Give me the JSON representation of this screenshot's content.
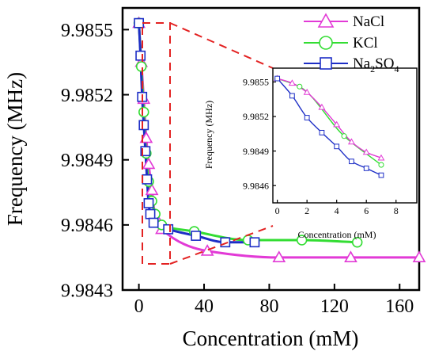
{
  "chart_data": [
    {
      "type": "line",
      "xlabel": "Concentration (mM)",
      "ylabel": "Frequency  (MHz)",
      "xlim": [
        -10,
        172
      ],
      "ylim": [
        9.9843,
        9.9856
      ],
      "x_ticks": [
        0,
        40,
        80,
        120,
        160
      ],
      "x_tick_labels": [
        "0",
        "40",
        "80",
        "120",
        "160"
      ],
      "y_ticks": [
        9.9843,
        9.9846,
        9.9849,
        9.9852,
        9.9855
      ],
      "y_tick_labels": [
        "9.9843",
        "9.9846",
        "9.9849",
        "9.9852",
        "9.9855"
      ],
      "legend_position": "top-right",
      "series": [
        {
          "name": "NaCl",
          "color": "#e23ad6",
          "marker": "triangle",
          "markers": [
            {
              "x": 0,
              "y": 9.98553
            },
            {
              "x": 1.5,
              "y": 9.98535
            },
            {
              "x": 3,
              "y": 9.98518
            },
            {
              "x": 4.5,
              "y": 9.985
            },
            {
              "x": 6,
              "y": 9.98488
            },
            {
              "x": 8,
              "y": 9.98476
            },
            {
              "x": 10,
              "y": 9.98464
            },
            {
              "x": 14,
              "y": 9.98458
            },
            {
              "x": 42,
              "y": 9.98448
            },
            {
              "x": 86,
              "y": 9.98445
            },
            {
              "x": 130,
              "y": 9.98445
            },
            {
              "x": 172,
              "y": 9.98445
            }
          ]
        },
        {
          "name": "KCl",
          "color": "#33dd33",
          "marker": "circle",
          "markers": [
            {
              "x": 0,
              "y": 9.98553
            },
            {
              "x": 1.5,
              "y": 9.98533
            },
            {
              "x": 3,
              "y": 9.98512
            },
            {
              "x": 4.5,
              "y": 9.98493
            },
            {
              "x": 6,
              "y": 9.9848
            },
            {
              "x": 8,
              "y": 9.98471
            },
            {
              "x": 10,
              "y": 9.98465
            },
            {
              "x": 14,
              "y": 9.9846
            },
            {
              "x": 34,
              "y": 9.98457
            },
            {
              "x": 67,
              "y": 9.98453
            },
            {
              "x": 100,
              "y": 9.98453
            },
            {
              "x": 134,
              "y": 9.98452
            }
          ]
        },
        {
          "name": "Na2SO4",
          "color": "#1d2ec6",
          "marker": "square",
          "markers": [
            {
              "x": 0,
              "y": 9.98553
            },
            {
              "x": 1,
              "y": 9.98538
            },
            {
              "x": 2,
              "y": 9.98519
            },
            {
              "x": 3,
              "y": 9.98506
            },
            {
              "x": 4,
              "y": 9.98494
            },
            {
              "x": 5,
              "y": 9.98481
            },
            {
              "x": 6,
              "y": 9.9847
            },
            {
              "x": 7,
              "y": 9.98465
            },
            {
              "x": 9,
              "y": 9.98461
            },
            {
              "x": 18,
              "y": 9.98458
            },
            {
              "x": 35,
              "y": 9.98455
            },
            {
              "x": 53,
              "y": 9.98452
            },
            {
              "x": 71,
              "y": 9.98452
            }
          ]
        }
      ]
    },
    {
      "type": "line",
      "xlabel": "Concentration (mM)",
      "ylabel": "Frequency  (MHz)",
      "xlim": [
        -0.3,
        9.4
      ],
      "ylim": [
        9.98445,
        9.98562
      ],
      "x_ticks": [
        0,
        2,
        4,
        6,
        8
      ],
      "x_tick_labels": [
        "0",
        "2",
        "4",
        "6",
        "8"
      ],
      "y_ticks": [
        9.9846,
        9.9849,
        9.9852,
        9.9855
      ],
      "y_tick_labels": [
        "9.9846",
        "9.9849",
        "9.9852",
        "9.9855"
      ],
      "series": [
        {
          "name": "NaCl",
          "markers": [
            {
              "x": 0,
              "y": 9.98553
            },
            {
              "x": 1,
              "y": 9.98549
            },
            {
              "x": 2,
              "y": 9.98541
            },
            {
              "x": 3,
              "y": 9.98528
            },
            {
              "x": 4,
              "y": 9.98513
            },
            {
              "x": 5,
              "y": 9.98498
            },
            {
              "x": 6,
              "y": 9.98489
            },
            {
              "x": 7,
              "y": 9.98484
            }
          ]
        },
        {
          "name": "KCl",
          "markers": [
            {
              "x": 0,
              "y": 9.98553
            },
            {
              "x": 1.5,
              "y": 9.98546
            },
            {
              "x": 4.5,
              "y": 9.98503
            },
            {
              "x": 7,
              "y": 9.98478
            }
          ]
        },
        {
          "name": "Na2SO4",
          "markers": [
            {
              "x": 0,
              "y": 9.98553
            },
            {
              "x": 1,
              "y": 9.98538
            },
            {
              "x": 2,
              "y": 9.98519
            },
            {
              "x": 3,
              "y": 9.98506
            },
            {
              "x": 4,
              "y": 9.98494
            },
            {
              "x": 5,
              "y": 9.98481
            },
            {
              "x": 6,
              "y": 9.98475
            },
            {
              "x": 7,
              "y": 9.98469
            }
          ]
        }
      ]
    }
  ],
  "legend": {
    "nacl": "NaCl",
    "kcl": "KCl",
    "na2so4_base": "Na",
    "na2so4_sub1": "2",
    "na2so4_mid": "SO",
    "na2so4_sub2": "4"
  }
}
